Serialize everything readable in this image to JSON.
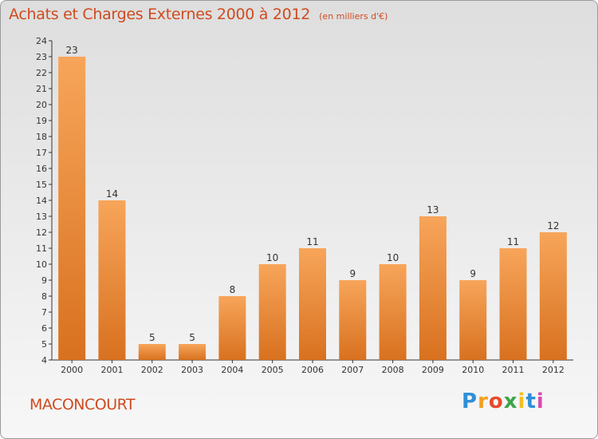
{
  "chart_data": {
    "type": "bar",
    "title": "Achats et Charges Externes 2000 à 2012",
    "subtitle": "(en milliers d'€)",
    "categories": [
      "2000",
      "2001",
      "2002",
      "2003",
      "2004",
      "2005",
      "2006",
      "2007",
      "2008",
      "2009",
      "2010",
      "2011",
      "2012"
    ],
    "values": [
      23,
      14,
      5,
      5,
      8,
      10,
      11,
      9,
      10,
      13,
      9,
      11,
      12
    ],
    "ylim": [
      4,
      24
    ],
    "yticks": [
      4,
      5,
      6,
      7,
      8,
      9,
      10,
      11,
      12,
      13,
      14,
      15,
      16,
      17,
      18,
      19,
      20,
      21,
      22,
      23,
      24
    ],
    "grid": false,
    "bar_color_top": "#f7a55a",
    "bar_color_bottom": "#d8711f"
  },
  "commune": "MACONCOURT",
  "logo": {
    "letters": [
      "P",
      "r",
      "o",
      "x",
      "i",
      "t",
      "i"
    ],
    "colors": [
      "#2f8fd8",
      "#f0a020",
      "#e84a2a",
      "#3aa548",
      "#f0c020",
      "#2f8fd8",
      "#d84ab0"
    ]
  },
  "colors": {
    "accent": "#d04a1f"
  }
}
